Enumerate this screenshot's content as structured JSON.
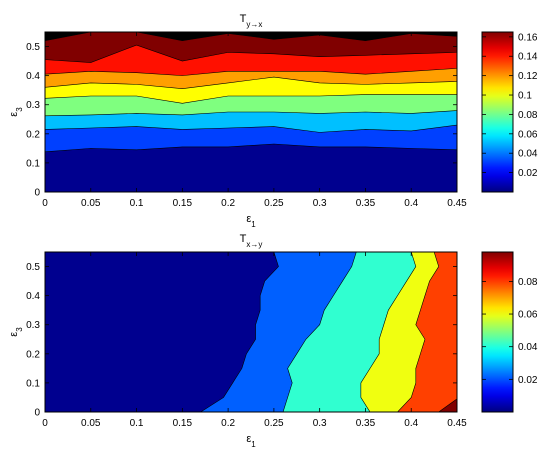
{
  "chart_data": [
    {
      "type": "heatmap",
      "subtype": "filled-contour",
      "title": {
        "base": "T",
        "sub": "y→x"
      },
      "xlabel": {
        "base": "ε",
        "sub": "1"
      },
      "ylabel": {
        "base": "ε",
        "sub": "3"
      },
      "xlim": [
        0,
        0.45
      ],
      "ylim": [
        0,
        0.55
      ],
      "xticks": [
        "0",
        "0.05",
        "0.1",
        "0.15",
        "0.2",
        "0.25",
        "0.3",
        "0.35",
        "0.4",
        "0.45"
      ],
      "yticks": [
        "0",
        "0.1",
        "0.2",
        "0.3",
        "0.4",
        "0.5"
      ],
      "colorbar": {
        "range": [
          0,
          0.165
        ],
        "ticks": [
          "0.02",
          "0.04",
          "0.06",
          "0.08",
          "0.1",
          "0.12",
          "0.14",
          "0.16"
        ],
        "colormap": "jet"
      },
      "contour_fill_colors": [
        "#00008f",
        "#0040ff",
        "#00c0ff",
        "#7fff7f",
        "#ffff00",
        "#ff9f00",
        "#ff1000",
        "#800000"
      ],
      "x": [
        0,
        0.05,
        0.1,
        0.15,
        0.2,
        0.25,
        0.3,
        0.35,
        0.4,
        0.45
      ],
      "contour_levels_y": [
        [
          0.138,
          0.15,
          0.145,
          0.155,
          0.155,
          0.165,
          0.155,
          0.155,
          0.15,
          0.145
        ],
        [
          0.215,
          0.22,
          0.225,
          0.215,
          0.22,
          0.225,
          0.205,
          0.215,
          0.21,
          0.23
        ],
        [
          0.262,
          0.265,
          0.27,
          0.265,
          0.275,
          0.275,
          0.27,
          0.275,
          0.27,
          0.28
        ],
        [
          0.322,
          0.33,
          0.33,
          0.305,
          0.33,
          0.33,
          0.33,
          0.335,
          0.335,
          0.335
        ],
        [
          0.36,
          0.375,
          0.37,
          0.355,
          0.375,
          0.395,
          0.375,
          0.37,
          0.375,
          0.38
        ],
        [
          0.405,
          0.415,
          0.41,
          0.4,
          0.415,
          0.415,
          0.415,
          0.405,
          0.415,
          0.425
        ],
        [
          0.455,
          0.445,
          0.505,
          0.45,
          0.48,
          0.475,
          0.465,
          0.47,
          0.475,
          0.48
        ],
        [
          0.52,
          0.55,
          0.55,
          0.52,
          0.545,
          0.525,
          0.54,
          0.52,
          0.545,
          0.535
        ]
      ]
    },
    {
      "type": "heatmap",
      "subtype": "filled-contour",
      "title": {
        "base": "T",
        "sub": "x→y"
      },
      "xlabel": {
        "base": "ε",
        "sub": "1"
      },
      "ylabel": {
        "base": "ε",
        "sub": "3"
      },
      "xlim": [
        0,
        0.45
      ],
      "ylim": [
        0,
        0.55
      ],
      "xticks": [
        "0",
        "0.05",
        "0.1",
        "0.15",
        "0.2",
        "0.25",
        "0.3",
        "0.35",
        "0.4",
        "0.45"
      ],
      "yticks": [
        "0",
        "0.1",
        "0.2",
        "0.3",
        "0.4",
        "0.5"
      ],
      "colorbar": {
        "range": [
          0,
          0.098
        ],
        "ticks": [
          "0.02",
          "0.04",
          "0.06",
          "0.08"
        ],
        "colormap": "jet"
      },
      "contour_fill_colors": [
        "#00008f",
        "#0060ff",
        "#30ffd0",
        "#f0ff10",
        "#ff4000",
        "#800000"
      ],
      "y": [
        0,
        0.05,
        0.1,
        0.15,
        0.2,
        0.25,
        0.3,
        0.35,
        0.4,
        0.45,
        0.5,
        0.55
      ],
      "contour_levels_x": [
        [
          0.17,
          0.195,
          0.205,
          0.215,
          0.22,
          0.23,
          0.23,
          0.235,
          0.235,
          0.24,
          0.255,
          0.25
        ],
        [
          0.26,
          0.265,
          0.27,
          0.265,
          0.275,
          0.285,
          0.3,
          0.305,
          0.315,
          0.325,
          0.335,
          0.34
        ],
        [
          0.355,
          0.345,
          0.345,
          0.355,
          0.365,
          0.365,
          0.37,
          0.375,
          0.385,
          0.395,
          0.405,
          0.4
        ],
        [
          0.385,
          0.4,
          0.405,
          0.405,
          0.41,
          0.415,
          0.405,
          0.41,
          0.415,
          0.42,
          0.43,
          0.425
        ],
        [
          0.44,
          0.455,
          0.455,
          0.455,
          0.455,
          0.455,
          0.455,
          0.455,
          0.455,
          0.455,
          0.455,
          0.455
        ]
      ],
      "corner_level": {
        "x": [
          0.43,
          0.45
        ],
        "y": [
          0,
          0.045
        ]
      }
    }
  ]
}
